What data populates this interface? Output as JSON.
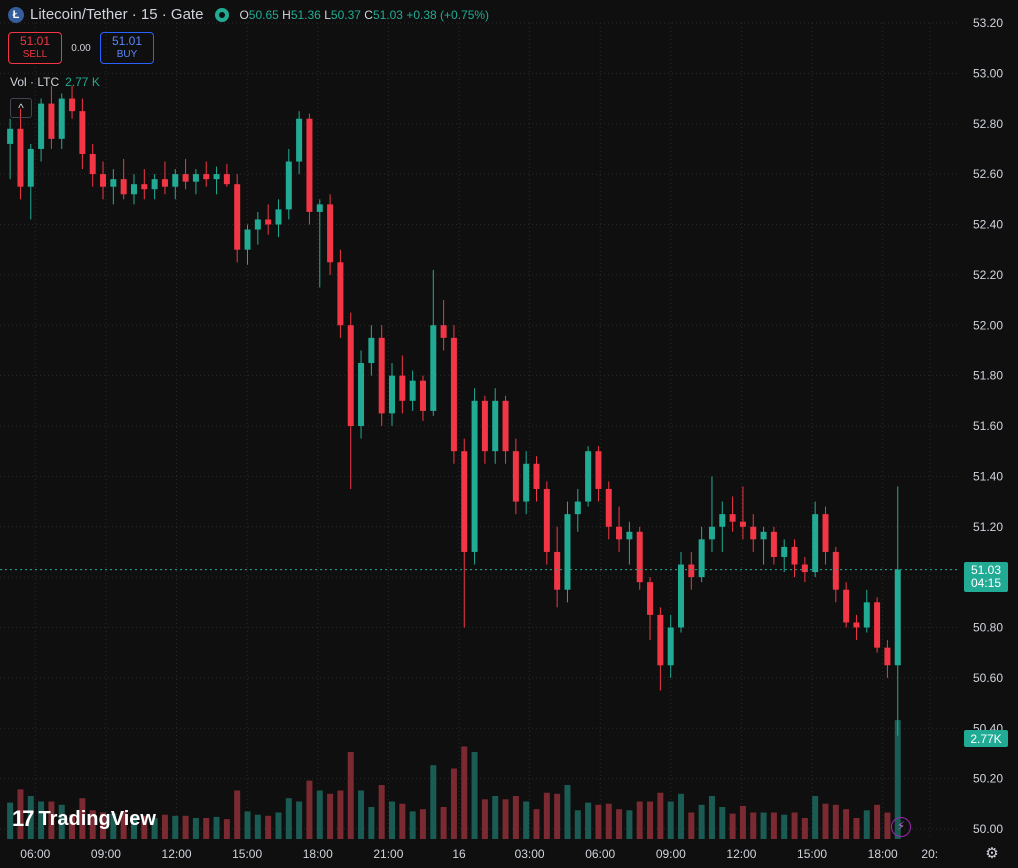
{
  "header": {
    "symbol_icon_letter": "Ł",
    "title": "Litecoin/Tether · 15 · Gate",
    "ohlc": {
      "o_label": "O",
      "o": "50.65",
      "h_label": "H",
      "h": "51.36",
      "l_label": "L",
      "l": "50.37",
      "c_label": "C",
      "c": "51.03",
      "change": "+0.38 (+0.75%)"
    }
  },
  "trade": {
    "sell_price": "51.01",
    "sell_label": "SELL",
    "spread": "0.00",
    "buy_price": "51.01",
    "buy_label": "BUY"
  },
  "volume_legend": {
    "label": "Vol · LTC",
    "value": "2.77 K"
  },
  "collapse_icon": "^",
  "brand": {
    "mark": "17",
    "name": "TradingView"
  },
  "price_tag": {
    "price": "51.03",
    "countdown": "04:15"
  },
  "volume_tag": "2.77K",
  "colors": {
    "up": "#22ab94",
    "down": "#f23645",
    "up_vol": "#1a5c54",
    "down_vol": "#7a2a30",
    "grid": "#2a2a2a",
    "bg": "#0f0f0f"
  },
  "chart_data": {
    "type": "candlestick",
    "y_ticks": [
      "53.20",
      "53.00",
      "52.80",
      "52.60",
      "52.40",
      "52.20",
      "52.00",
      "51.80",
      "51.60",
      "51.40",
      "51.20",
      "51.00",
      "50.80",
      "50.60",
      "50.40",
      "50.20",
      "50.00"
    ],
    "y_range": [
      50.0,
      53.2
    ],
    "x_ticks": [
      "06:00",
      "09:00",
      "12:00",
      "15:00",
      "18:00",
      "21:00",
      "16",
      "03:00",
      "06:00",
      "09:00",
      "12:00",
      "15:00",
      "18:00",
      "20:"
    ],
    "x_range_hours": [
      4.5,
      26.3
    ],
    "last_price": 51.03,
    "candles": [
      {
        "t": 4.6,
        "o": 52.72,
        "h": 52.82,
        "l": 52.58,
        "c": 52.78
      },
      {
        "t": 4.85,
        "o": 52.78,
        "h": 52.86,
        "l": 52.5,
        "c": 52.55
      },
      {
        "t": 5.1,
        "o": 52.55,
        "h": 52.72,
        "l": 52.42,
        "c": 52.7
      },
      {
        "t": 5.35,
        "o": 52.7,
        "h": 52.9,
        "l": 52.65,
        "c": 52.88
      },
      {
        "t": 5.6,
        "o": 52.88,
        "h": 52.95,
        "l": 52.7,
        "c": 52.74
      },
      {
        "t": 5.85,
        "o": 52.74,
        "h": 52.92,
        "l": 52.7,
        "c": 52.9
      },
      {
        "t": 6.1,
        "o": 52.9,
        "h": 52.95,
        "l": 52.82,
        "c": 52.85
      },
      {
        "t": 6.35,
        "o": 52.85,
        "h": 52.9,
        "l": 52.62,
        "c": 52.68
      },
      {
        "t": 6.6,
        "o": 52.68,
        "h": 52.72,
        "l": 52.55,
        "c": 52.6
      },
      {
        "t": 6.85,
        "o": 52.6,
        "h": 52.65,
        "l": 52.5,
        "c": 52.55
      },
      {
        "t": 7.1,
        "o": 52.55,
        "h": 52.62,
        "l": 52.48,
        "c": 52.58
      },
      {
        "t": 7.35,
        "o": 52.58,
        "h": 52.66,
        "l": 52.5,
        "c": 52.52
      },
      {
        "t": 7.6,
        "o": 52.52,
        "h": 52.6,
        "l": 52.48,
        "c": 52.56
      },
      {
        "t": 7.85,
        "o": 52.56,
        "h": 52.62,
        "l": 52.5,
        "c": 52.54
      },
      {
        "t": 8.1,
        "o": 52.54,
        "h": 52.6,
        "l": 52.5,
        "c": 52.58
      },
      {
        "t": 8.35,
        "o": 52.58,
        "h": 52.65,
        "l": 52.52,
        "c": 52.55
      },
      {
        "t": 8.6,
        "o": 52.55,
        "h": 52.62,
        "l": 52.5,
        "c": 52.6
      },
      {
        "t": 8.85,
        "o": 52.6,
        "h": 52.66,
        "l": 52.54,
        "c": 52.57
      },
      {
        "t": 9.1,
        "o": 52.57,
        "h": 52.62,
        "l": 52.52,
        "c": 52.6
      },
      {
        "t": 9.35,
        "o": 52.6,
        "h": 52.65,
        "l": 52.55,
        "c": 52.58
      },
      {
        "t": 9.6,
        "o": 52.58,
        "h": 52.63,
        "l": 52.52,
        "c": 52.6
      },
      {
        "t": 9.85,
        "o": 52.6,
        "h": 52.64,
        "l": 52.55,
        "c": 52.56
      },
      {
        "t": 10.1,
        "o": 52.56,
        "h": 52.6,
        "l": 52.25,
        "c": 52.3
      },
      {
        "t": 10.35,
        "o": 52.3,
        "h": 52.4,
        "l": 52.24,
        "c": 52.38
      },
      {
        "t": 10.6,
        "o": 52.38,
        "h": 52.45,
        "l": 52.32,
        "c": 52.42
      },
      {
        "t": 10.85,
        "o": 52.42,
        "h": 52.48,
        "l": 52.36,
        "c": 52.4
      },
      {
        "t": 11.1,
        "o": 52.4,
        "h": 52.5,
        "l": 52.35,
        "c": 52.46
      },
      {
        "t": 11.35,
        "o": 52.46,
        "h": 52.7,
        "l": 52.42,
        "c": 52.65
      },
      {
        "t": 11.6,
        "o": 52.65,
        "h": 52.85,
        "l": 52.6,
        "c": 52.82
      },
      {
        "t": 11.85,
        "o": 52.82,
        "h": 52.84,
        "l": 52.4,
        "c": 52.45
      },
      {
        "t": 12.1,
        "o": 52.45,
        "h": 52.5,
        "l": 52.15,
        "c": 52.48
      },
      {
        "t": 12.35,
        "o": 52.48,
        "h": 52.52,
        "l": 52.2,
        "c": 52.25
      },
      {
        "t": 12.6,
        "o": 52.25,
        "h": 52.3,
        "l": 51.95,
        "c": 52.0
      },
      {
        "t": 12.85,
        "o": 52.0,
        "h": 52.05,
        "l": 51.35,
        "c": 51.6
      },
      {
        "t": 13.1,
        "o": 51.6,
        "h": 51.9,
        "l": 51.55,
        "c": 51.85
      },
      {
        "t": 13.35,
        "o": 51.85,
        "h": 52.0,
        "l": 51.8,
        "c": 51.95
      },
      {
        "t": 13.6,
        "o": 51.95,
        "h": 52.0,
        "l": 51.6,
        "c": 51.65
      },
      {
        "t": 13.85,
        "o": 51.65,
        "h": 51.85,
        "l": 51.6,
        "c": 51.8
      },
      {
        "t": 14.1,
        "o": 51.8,
        "h": 51.88,
        "l": 51.65,
        "c": 51.7
      },
      {
        "t": 14.35,
        "o": 51.7,
        "h": 51.82,
        "l": 51.66,
        "c": 51.78
      },
      {
        "t": 14.6,
        "o": 51.78,
        "h": 51.8,
        "l": 51.62,
        "c": 51.66
      },
      {
        "t": 14.85,
        "o": 51.66,
        "h": 52.22,
        "l": 51.64,
        "c": 52.0
      },
      {
        "t": 15.1,
        "o": 52.0,
        "h": 52.1,
        "l": 51.9,
        "c": 51.95
      },
      {
        "t": 15.35,
        "o": 51.95,
        "h": 52.0,
        "l": 51.45,
        "c": 51.5
      },
      {
        "t": 15.6,
        "o": 51.5,
        "h": 51.55,
        "l": 50.8,
        "c": 51.1
      },
      {
        "t": 15.85,
        "o": 51.1,
        "h": 51.75,
        "l": 51.05,
        "c": 51.7
      },
      {
        "t": 16.1,
        "o": 51.7,
        "h": 51.72,
        "l": 51.45,
        "c": 51.5
      },
      {
        "t": 16.35,
        "o": 51.5,
        "h": 51.75,
        "l": 51.45,
        "c": 51.7
      },
      {
        "t": 16.6,
        "o": 51.7,
        "h": 51.72,
        "l": 51.45,
        "c": 51.5
      },
      {
        "t": 16.85,
        "o": 51.5,
        "h": 51.55,
        "l": 51.25,
        "c": 51.3
      },
      {
        "t": 17.1,
        "o": 51.3,
        "h": 51.5,
        "l": 51.25,
        "c": 51.45
      },
      {
        "t": 17.35,
        "o": 51.45,
        "h": 51.48,
        "l": 51.3,
        "c": 51.35
      },
      {
        "t": 17.6,
        "o": 51.35,
        "h": 51.38,
        "l": 51.05,
        "c": 51.1
      },
      {
        "t": 17.85,
        "o": 51.1,
        "h": 51.2,
        "l": 50.88,
        "c": 50.95
      },
      {
        "t": 18.1,
        "o": 50.95,
        "h": 51.3,
        "l": 50.9,
        "c": 51.25
      },
      {
        "t": 18.35,
        "o": 51.25,
        "h": 51.35,
        "l": 51.18,
        "c": 51.3
      },
      {
        "t": 18.6,
        "o": 51.3,
        "h": 51.52,
        "l": 51.28,
        "c": 51.5
      },
      {
        "t": 18.85,
        "o": 51.5,
        "h": 51.52,
        "l": 51.3,
        "c": 51.35
      },
      {
        "t": 19.1,
        "o": 51.35,
        "h": 51.38,
        "l": 51.15,
        "c": 51.2
      },
      {
        "t": 19.35,
        "o": 51.2,
        "h": 51.28,
        "l": 51.1,
        "c": 51.15
      },
      {
        "t": 19.6,
        "o": 51.15,
        "h": 51.22,
        "l": 51.05,
        "c": 51.18
      },
      {
        "t": 19.85,
        "o": 51.18,
        "h": 51.2,
        "l": 50.95,
        "c": 50.98
      },
      {
        "t": 20.1,
        "o": 50.98,
        "h": 51.0,
        "l": 50.75,
        "c": 50.85
      },
      {
        "t": 20.35,
        "o": 50.85,
        "h": 50.88,
        "l": 50.55,
        "c": 50.65
      },
      {
        "t": 20.6,
        "o": 50.65,
        "h": 50.85,
        "l": 50.6,
        "c": 50.8
      },
      {
        "t": 20.85,
        "o": 50.8,
        "h": 51.1,
        "l": 50.78,
        "c": 51.05
      },
      {
        "t": 21.1,
        "o": 51.05,
        "h": 51.1,
        "l": 50.95,
        "c": 51.0
      },
      {
        "t": 21.35,
        "o": 51.0,
        "h": 51.2,
        "l": 50.98,
        "c": 51.15
      },
      {
        "t": 21.6,
        "o": 51.15,
        "h": 51.4,
        "l": 51.1,
        "c": 51.2
      },
      {
        "t": 21.85,
        "o": 51.2,
        "h": 51.3,
        "l": 51.1,
        "c": 51.25
      },
      {
        "t": 22.1,
        "o": 51.25,
        "h": 51.32,
        "l": 51.18,
        "c": 51.22
      },
      {
        "t": 22.35,
        "o": 51.22,
        "h": 51.36,
        "l": 51.15,
        "c": 51.2
      },
      {
        "t": 22.6,
        "o": 51.2,
        "h": 51.25,
        "l": 51.1,
        "c": 51.15
      },
      {
        "t": 22.85,
        "o": 51.15,
        "h": 51.2,
        "l": 51.05,
        "c": 51.18
      },
      {
        "t": 23.1,
        "o": 51.18,
        "h": 51.2,
        "l": 51.05,
        "c": 51.08
      },
      {
        "t": 23.35,
        "o": 51.08,
        "h": 51.15,
        "l": 51.02,
        "c": 51.12
      },
      {
        "t": 23.6,
        "o": 51.12,
        "h": 51.15,
        "l": 51.0,
        "c": 51.05
      },
      {
        "t": 23.85,
        "o": 51.05,
        "h": 51.08,
        "l": 50.98,
        "c": 51.02
      },
      {
        "t": 24.1,
        "o": 51.02,
        "h": 51.3,
        "l": 51.0,
        "c": 51.25
      },
      {
        "t": 24.35,
        "o": 51.25,
        "h": 51.28,
        "l": 51.05,
        "c": 51.1
      },
      {
        "t": 24.6,
        "o": 51.1,
        "h": 51.12,
        "l": 50.9,
        "c": 50.95
      },
      {
        "t": 24.85,
        "o": 50.95,
        "h": 50.98,
        "l": 50.8,
        "c": 50.82
      },
      {
        "t": 25.1,
        "o": 50.82,
        "h": 50.85,
        "l": 50.75,
        "c": 50.8
      },
      {
        "t": 25.35,
        "o": 50.8,
        "h": 50.95,
        "l": 50.78,
        "c": 50.9
      },
      {
        "t": 25.6,
        "o": 50.9,
        "h": 50.92,
        "l": 50.7,
        "c": 50.72
      },
      {
        "t": 25.85,
        "o": 50.72,
        "h": 50.75,
        "l": 50.6,
        "c": 50.65
      },
      {
        "t": 26.1,
        "o": 50.65,
        "h": 51.36,
        "l": 50.37,
        "c": 51.03
      }
    ]
  }
}
